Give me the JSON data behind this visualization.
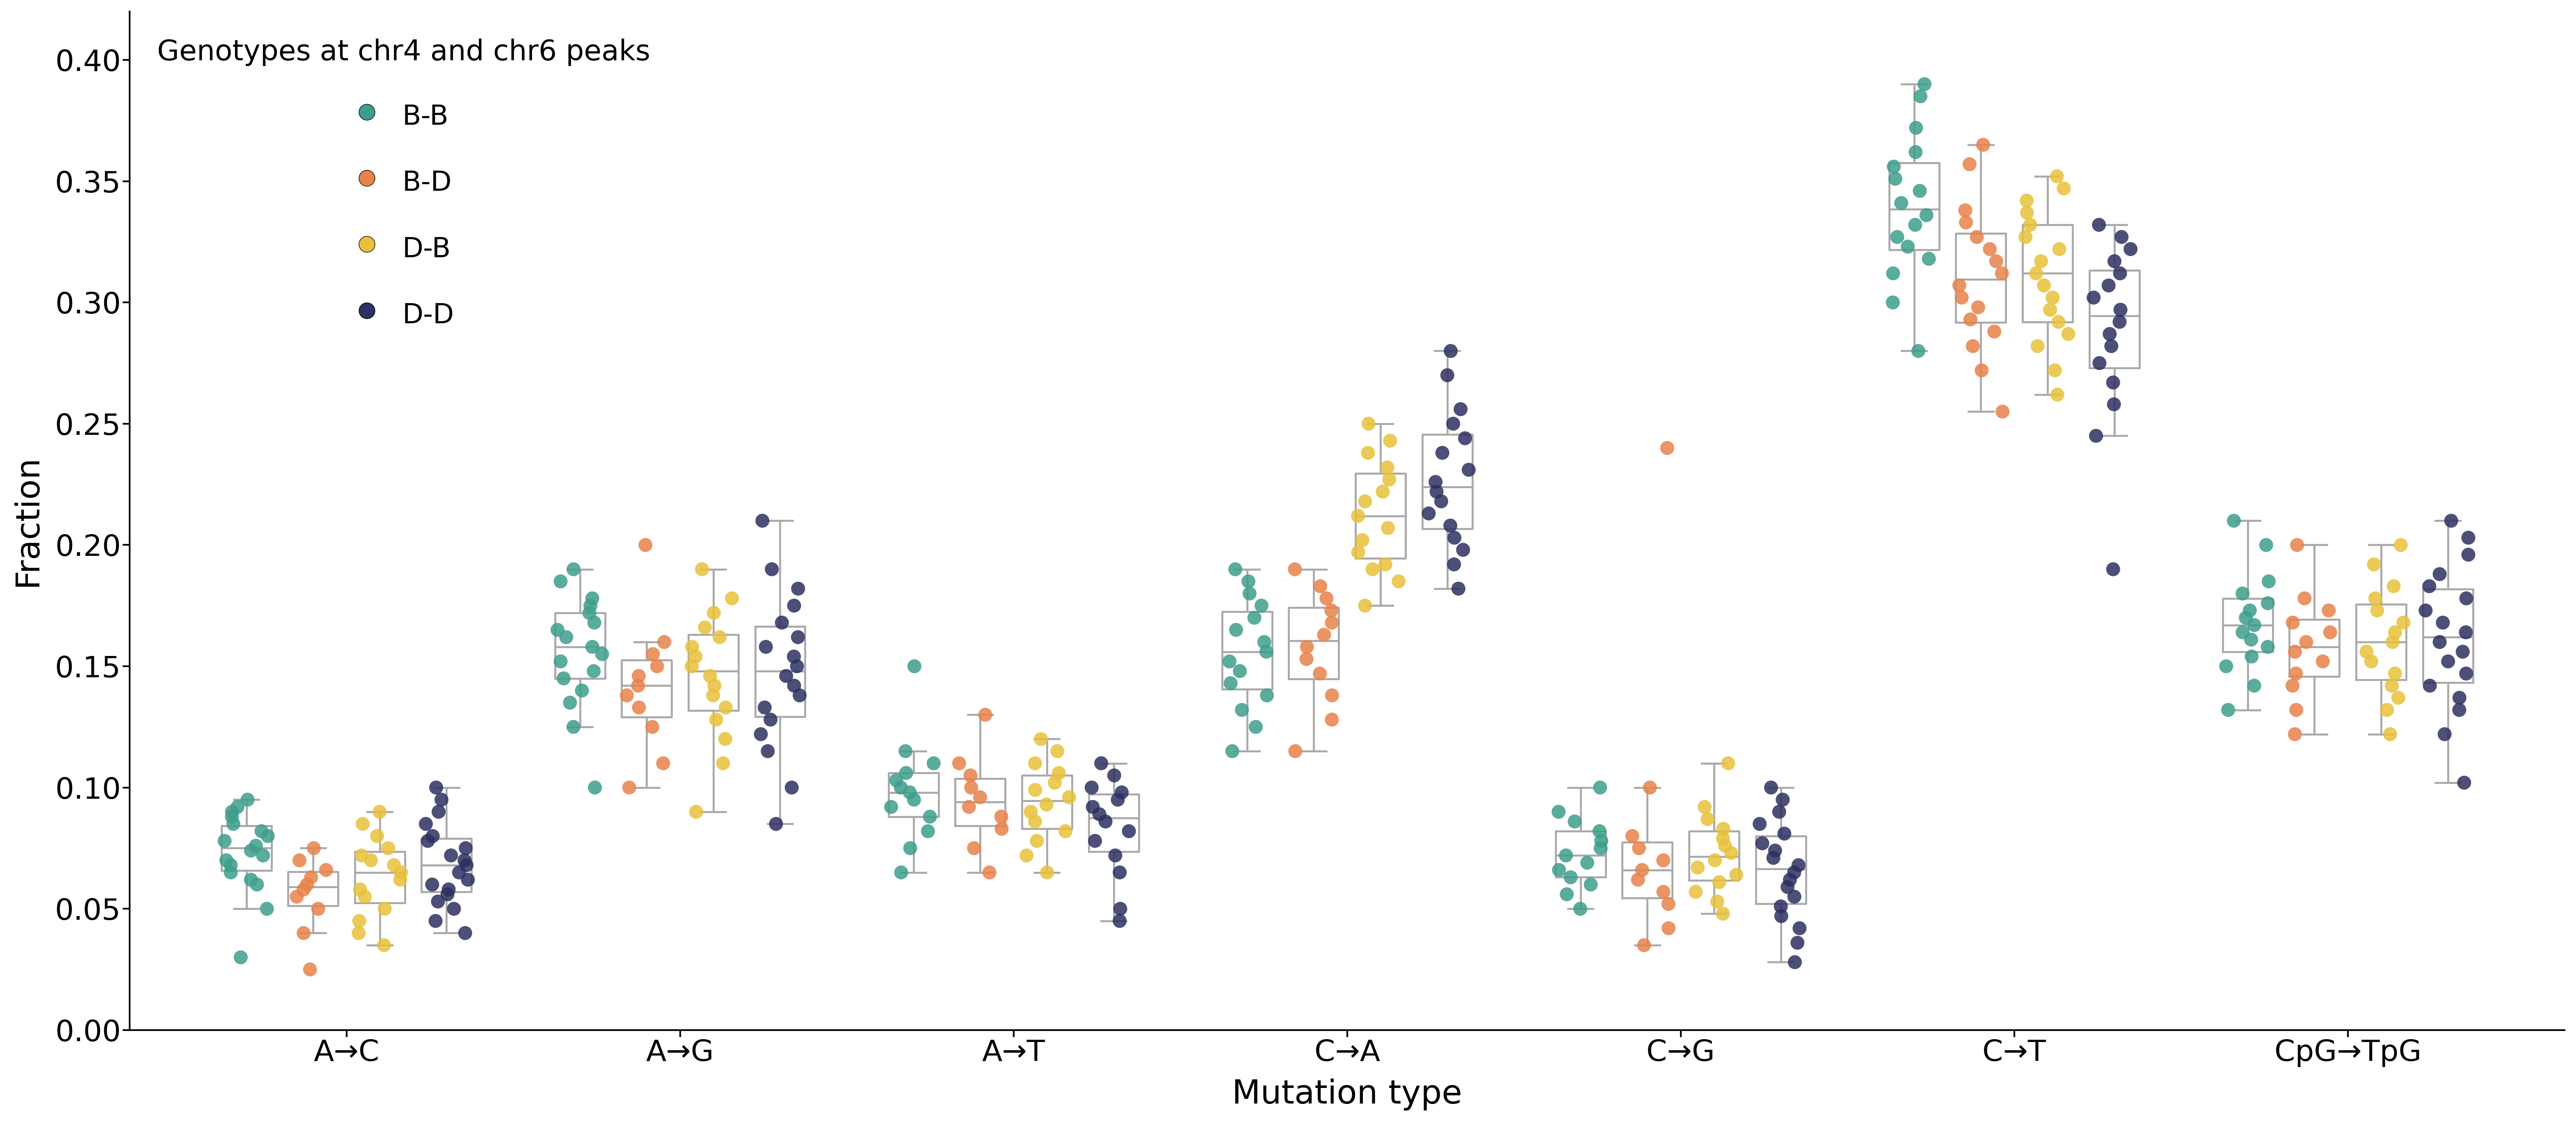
{
  "mutation_types": [
    "A→C",
    "A→G",
    "A→T",
    "C→A",
    "C→G",
    "C→T",
    "CpG→TpG"
  ],
  "groups": [
    "B-B",
    "B-D",
    "D-B",
    "D-D"
  ],
  "colors": [
    "#3d9e8c",
    "#e8824a",
    "#e8c13a",
    "#2d3060"
  ],
  "group_offsets": [
    -0.3,
    -0.1,
    0.1,
    0.3
  ],
  "box_width": 0.15,
  "xlabel": "Mutation type",
  "ylabel": "Fraction",
  "legend_title": "Genotypes at chr4 and chr6 peaks",
  "ylim": [
    0.0,
    0.42
  ],
  "yticks": [
    0.0,
    0.05,
    0.1,
    0.15,
    0.2,
    0.25,
    0.3,
    0.35,
    0.4
  ],
  "data": {
    "A→C": {
      "B-B": [
        0.03,
        0.05,
        0.06,
        0.062,
        0.065,
        0.068,
        0.07,
        0.072,
        0.074,
        0.076,
        0.078,
        0.08,
        0.082,
        0.085,
        0.088,
        0.09,
        0.092,
        0.095
      ],
      "B-D": [
        0.025,
        0.04,
        0.05,
        0.055,
        0.058,
        0.06,
        0.063,
        0.066,
        0.07,
        0.075
      ],
      "D-B": [
        0.035,
        0.045,
        0.05,
        0.055,
        0.058,
        0.062,
        0.065,
        0.068,
        0.07,
        0.072,
        0.075,
        0.08,
        0.085,
        0.09,
        0.04
      ],
      "D-D": [
        0.04,
        0.045,
        0.05,
        0.053,
        0.056,
        0.058,
        0.06,
        0.062,
        0.065,
        0.068,
        0.07,
        0.072,
        0.075,
        0.078,
        0.08,
        0.085,
        0.09,
        0.095,
        0.1
      ]
    },
    "A→G": {
      "B-B": [
        0.1,
        0.125,
        0.135,
        0.14,
        0.145,
        0.148,
        0.152,
        0.155,
        0.158,
        0.162,
        0.165,
        0.168,
        0.172,
        0.175,
        0.178,
        0.185,
        0.19
      ],
      "B-D": [
        0.1,
        0.11,
        0.125,
        0.133,
        0.138,
        0.142,
        0.146,
        0.15,
        0.155,
        0.16,
        0.2
      ],
      "D-B": [
        0.09,
        0.11,
        0.12,
        0.128,
        0.133,
        0.138,
        0.142,
        0.146,
        0.15,
        0.154,
        0.158,
        0.162,
        0.166,
        0.172,
        0.178,
        0.19
      ],
      "D-D": [
        0.085,
        0.1,
        0.115,
        0.122,
        0.128,
        0.133,
        0.138,
        0.142,
        0.146,
        0.15,
        0.154,
        0.158,
        0.162,
        0.168,
        0.175,
        0.182,
        0.19,
        0.21
      ]
    },
    "A→T": {
      "B-B": [
        0.065,
        0.075,
        0.082,
        0.088,
        0.092,
        0.095,
        0.098,
        0.1,
        0.103,
        0.106,
        0.11,
        0.115,
        0.15
      ],
      "B-D": [
        0.065,
        0.075,
        0.083,
        0.088,
        0.092,
        0.096,
        0.1,
        0.105,
        0.11,
        0.13
      ],
      "D-B": [
        0.065,
        0.072,
        0.078,
        0.082,
        0.086,
        0.09,
        0.093,
        0.096,
        0.099,
        0.102,
        0.106,
        0.11,
        0.115,
        0.12
      ],
      "D-D": [
        0.045,
        0.065,
        0.072,
        0.078,
        0.082,
        0.086,
        0.089,
        0.092,
        0.095,
        0.098,
        0.1,
        0.105,
        0.11,
        0.05
      ]
    },
    "C→A": {
      "B-B": [
        0.115,
        0.125,
        0.132,
        0.138,
        0.143,
        0.148,
        0.152,
        0.156,
        0.16,
        0.165,
        0.17,
        0.175,
        0.18,
        0.185,
        0.19
      ],
      "B-D": [
        0.115,
        0.128,
        0.138,
        0.147,
        0.153,
        0.158,
        0.163,
        0.168,
        0.173,
        0.178,
        0.183,
        0.19
      ],
      "D-B": [
        0.175,
        0.185,
        0.192,
        0.197,
        0.202,
        0.207,
        0.212,
        0.218,
        0.222,
        0.227,
        0.232,
        0.238,
        0.243,
        0.25,
        0.19
      ],
      "D-D": [
        0.182,
        0.192,
        0.198,
        0.203,
        0.208,
        0.213,
        0.218,
        0.222,
        0.226,
        0.231,
        0.238,
        0.244,
        0.25,
        0.256,
        0.27,
        0.28
      ]
    },
    "C→G": {
      "B-B": [
        0.05,
        0.056,
        0.06,
        0.063,
        0.066,
        0.069,
        0.072,
        0.075,
        0.078,
        0.082,
        0.086,
        0.09,
        0.1
      ],
      "B-D": [
        0.035,
        0.042,
        0.052,
        0.057,
        0.062,
        0.066,
        0.07,
        0.075,
        0.08,
        0.1,
        0.24
      ],
      "D-B": [
        0.048,
        0.053,
        0.057,
        0.061,
        0.064,
        0.067,
        0.07,
        0.073,
        0.076,
        0.079,
        0.083,
        0.087,
        0.092,
        0.11
      ],
      "D-D": [
        0.028,
        0.036,
        0.042,
        0.047,
        0.051,
        0.055,
        0.059,
        0.062,
        0.065,
        0.068,
        0.071,
        0.074,
        0.077,
        0.081,
        0.085,
        0.09,
        0.095,
        0.1
      ]
    },
    "C→T": {
      "B-B": [
        0.28,
        0.3,
        0.312,
        0.318,
        0.323,
        0.327,
        0.332,
        0.336,
        0.341,
        0.346,
        0.351,
        0.356,
        0.362,
        0.372,
        0.385,
        0.39
      ],
      "B-D": [
        0.255,
        0.272,
        0.282,
        0.288,
        0.293,
        0.298,
        0.302,
        0.307,
        0.312,
        0.317,
        0.322,
        0.327,
        0.333,
        0.338,
        0.357,
        0.365
      ],
      "D-B": [
        0.262,
        0.272,
        0.282,
        0.287,
        0.292,
        0.297,
        0.302,
        0.307,
        0.312,
        0.317,
        0.322,
        0.327,
        0.332,
        0.337,
        0.342,
        0.347,
        0.352
      ],
      "D-D": [
        0.19,
        0.245,
        0.258,
        0.267,
        0.275,
        0.282,
        0.287,
        0.292,
        0.297,
        0.302,
        0.307,
        0.312,
        0.317,
        0.322,
        0.327,
        0.332
      ]
    },
    "CpG→TpG": {
      "B-B": [
        0.132,
        0.142,
        0.15,
        0.154,
        0.158,
        0.161,
        0.164,
        0.167,
        0.17,
        0.173,
        0.176,
        0.18,
        0.185,
        0.2,
        0.21
      ],
      "B-D": [
        0.122,
        0.132,
        0.142,
        0.147,
        0.152,
        0.156,
        0.16,
        0.164,
        0.168,
        0.173,
        0.178,
        0.2
      ],
      "D-B": [
        0.122,
        0.132,
        0.137,
        0.142,
        0.147,
        0.152,
        0.156,
        0.16,
        0.164,
        0.168,
        0.173,
        0.178,
        0.183,
        0.192,
        0.2
      ],
      "D-D": [
        0.102,
        0.122,
        0.132,
        0.137,
        0.142,
        0.147,
        0.152,
        0.156,
        0.16,
        0.164,
        0.168,
        0.173,
        0.178,
        0.183,
        0.188,
        0.196,
        0.203,
        0.21
      ]
    }
  }
}
